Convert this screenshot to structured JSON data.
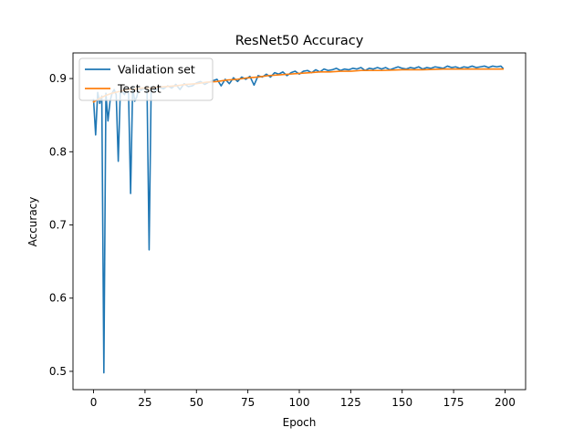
{
  "chart_data": {
    "type": "line",
    "title": "ResNet50 Accuracy",
    "xlabel": "Epoch",
    "ylabel": "Accuracy",
    "xlim": [
      -10,
      210
    ],
    "ylim": [
      0.475,
      0.935
    ],
    "xticks": [
      0,
      25,
      50,
      75,
      100,
      125,
      150,
      175,
      200
    ],
    "yticks": [
      0.5,
      0.6,
      0.7,
      0.8,
      0.9
    ],
    "ytick_labels": [
      "0.5",
      "0.6",
      "0.7",
      "0.8",
      "0.9"
    ],
    "grid": false,
    "legend": {
      "placement": "upper-left"
    },
    "series": [
      {
        "name": "Validation set",
        "color": "#1f77b4",
        "x": [
          0,
          1,
          2,
          3,
          4,
          5,
          6,
          7,
          8,
          9,
          10,
          11,
          12,
          13,
          14,
          15,
          16,
          17,
          18,
          19,
          20,
          21,
          22,
          23,
          24,
          25,
          26,
          27,
          28,
          29,
          30,
          32,
          34,
          36,
          38,
          40,
          42,
          44,
          46,
          48,
          50,
          52,
          54,
          56,
          58,
          60,
          62,
          64,
          66,
          68,
          70,
          72,
          74,
          76,
          78,
          80,
          82,
          84,
          86,
          88,
          90,
          92,
          94,
          96,
          98,
          100,
          102,
          104,
          106,
          108,
          110,
          112,
          114,
          116,
          118,
          120,
          122,
          124,
          126,
          128,
          130,
          132,
          134,
          136,
          138,
          140,
          142,
          144,
          146,
          148,
          150,
          152,
          154,
          156,
          158,
          160,
          162,
          164,
          166,
          168,
          170,
          172,
          174,
          176,
          178,
          180,
          182,
          184,
          186,
          188,
          190,
          192,
          194,
          196,
          198,
          199
        ],
        "y": [
          0.871,
          0.823,
          0.881,
          0.866,
          0.876,
          0.498,
          0.88,
          0.842,
          0.869,
          0.88,
          0.885,
          0.878,
          0.787,
          0.883,
          0.882,
          0.878,
          0.885,
          0.88,
          0.743,
          0.889,
          0.869,
          0.875,
          0.888,
          0.884,
          0.886,
          0.886,
          0.884,
          0.666,
          0.889,
          0.887,
          0.883,
          0.888,
          0.886,
          0.89,
          0.887,
          0.892,
          0.885,
          0.893,
          0.889,
          0.89,
          0.894,
          0.896,
          0.892,
          0.895,
          0.897,
          0.899,
          0.89,
          0.899,
          0.893,
          0.901,
          0.896,
          0.902,
          0.899,
          0.903,
          0.891,
          0.904,
          0.902,
          0.906,
          0.902,
          0.908,
          0.906,
          0.909,
          0.904,
          0.908,
          0.91,
          0.906,
          0.91,
          0.911,
          0.908,
          0.912,
          0.909,
          0.913,
          0.911,
          0.912,
          0.914,
          0.911,
          0.913,
          0.912,
          0.914,
          0.913,
          0.915,
          0.911,
          0.914,
          0.913,
          0.915,
          0.913,
          0.915,
          0.912,
          0.914,
          0.916,
          0.914,
          0.913,
          0.915,
          0.914,
          0.916,
          0.913,
          0.915,
          0.914,
          0.916,
          0.915,
          0.914,
          0.917,
          0.915,
          0.916,
          0.914,
          0.916,
          0.915,
          0.917,
          0.915,
          0.916,
          0.917,
          0.915,
          0.917,
          0.916,
          0.917,
          0.914
        ]
      },
      {
        "name": "Test set",
        "color": "#ff7f0e",
        "x": [
          0,
          3,
          6,
          9,
          12,
          15,
          18,
          21,
          24,
          27,
          30,
          35,
          40,
          45,
          50,
          55,
          60,
          65,
          70,
          75,
          80,
          85,
          90,
          95,
          100,
          105,
          110,
          115,
          120,
          125,
          130,
          140,
          150,
          160,
          170,
          180,
          190,
          199
        ],
        "y": [
          0.868,
          0.873,
          0.877,
          0.88,
          0.882,
          0.884,
          0.885,
          0.886,
          0.887,
          0.887,
          0.888,
          0.889,
          0.89,
          0.892,
          0.893,
          0.895,
          0.896,
          0.898,
          0.899,
          0.901,
          0.902,
          0.904,
          0.905,
          0.906,
          0.907,
          0.908,
          0.909,
          0.909,
          0.91,
          0.91,
          0.911,
          0.911,
          0.912,
          0.912,
          0.913,
          0.913,
          0.913,
          0.913
        ]
      }
    ]
  }
}
